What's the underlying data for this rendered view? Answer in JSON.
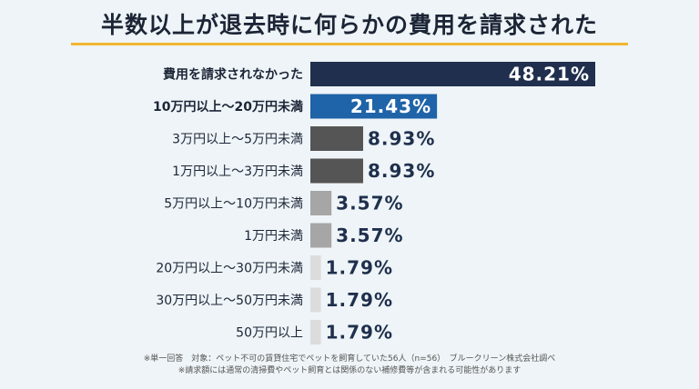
{
  "title": "半数以上が退去時に何らかの費用を請求された",
  "chart_data": {
    "type": "bar",
    "orientation": "horizontal",
    "title": "半数以上が退去時に何らかの費用を請求された",
    "categories": [
      "費用を請求されなかった",
      "10万円以上〜20万円未満",
      "3万円以上〜5万円未満",
      "1万円以上〜3万円未満",
      "5万円以上〜10万円未満",
      "1万円未満",
      "20万円以上〜30万円未満",
      "30万円以上〜50万円未満",
      "50万円以上"
    ],
    "values": [
      48.21,
      21.43,
      8.93,
      8.93,
      3.57,
      3.57,
      1.79,
      1.79,
      1.79
    ],
    "value_labels": [
      "48.21%",
      "21.43%",
      "8.93%",
      "8.93%",
      "3.57%",
      "3.57%",
      "1.79%",
      "1.79%",
      "1.79%"
    ],
    "bar_colors": [
      "#1f2f4d",
      "#1f63a8",
      "#555555",
      "#555555",
      "#a6a6a6",
      "#a6a6a6",
      "#dcdcdc",
      "#dcdcdc",
      "#dcdcdc"
    ],
    "bold_categories": [
      true,
      true,
      false,
      false,
      false,
      false,
      false,
      false,
      false
    ],
    "xlim": [
      0,
      48.21
    ],
    "grid": false
  },
  "footnotes": [
    "※単一回答　対象：ペット不可の賃貸住宅でペットを飼育していた56人（n=56）　ブルークリーン株式会社調べ",
    "※請求額には通常の清掃費やペット飼育とは関係のない補修費等が含まれる可能性があります"
  ],
  "colors": {
    "accent": "#f2b632",
    "title_text": "#1c2536",
    "value_text_dark": "#1f2f4d",
    "value_text_light": "#ffffff"
  }
}
